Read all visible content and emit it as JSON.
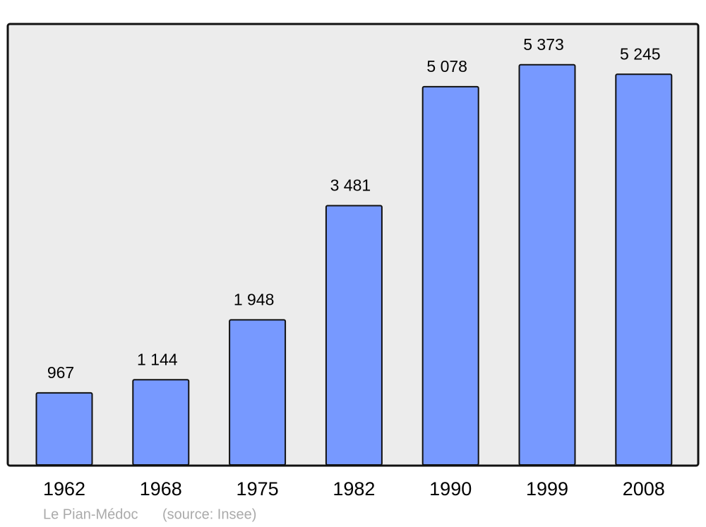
{
  "chart_data": {
    "type": "bar",
    "categories": [
      "1962",
      "1968",
      "1975",
      "1982",
      "1990",
      "1999",
      "2008"
    ],
    "values": [
      967,
      1144,
      1948,
      3481,
      5078,
      5373,
      5245
    ],
    "value_labels": [
      "967",
      "1 144",
      "1 948",
      "3 481",
      "5 078",
      "5 373",
      "5 245"
    ],
    "color": "#7799ff",
    "caption": "Le Pian-Médoc",
    "source": "(source: Insee)"
  }
}
